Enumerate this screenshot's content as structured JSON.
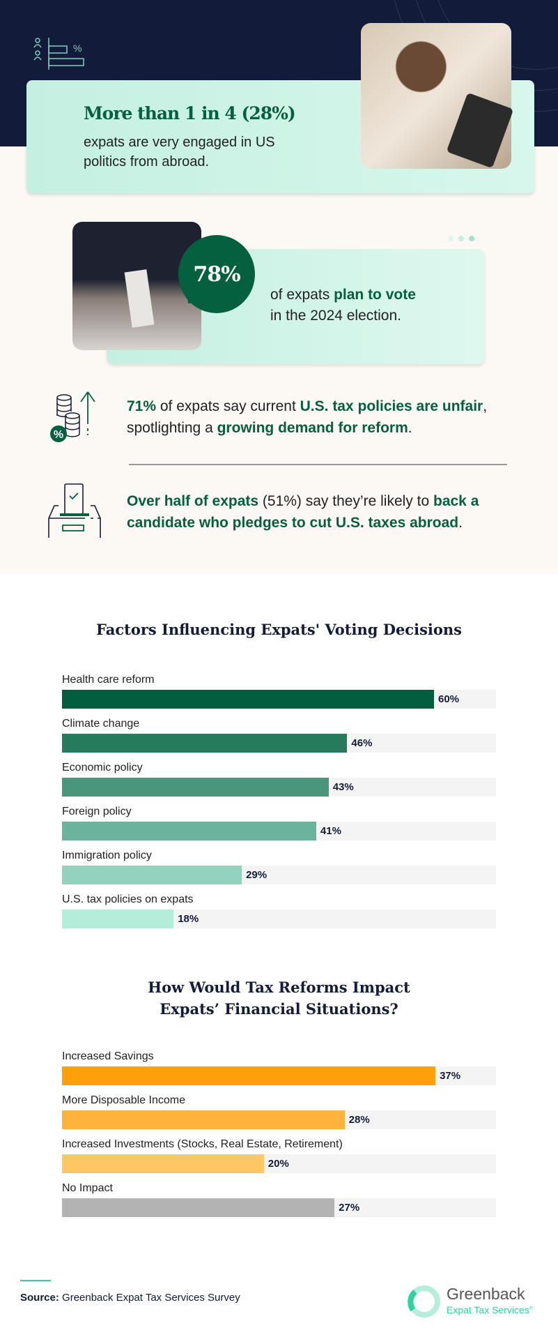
{
  "hero": {
    "headline": "More than 1 in 4 (28%)",
    "body": "expats are very engaged in US politics from abroad.",
    "icon": "people-bar-chart-percent-icon",
    "percent_symbol": "%"
  },
  "vote": {
    "stat": "78%",
    "pre": "of expats ",
    "bold": "plan to vote",
    "post": " in the 2024 election."
  },
  "stat1": {
    "icon": "coins-percent-arrow-icon",
    "p1": "71%",
    "p2": " of expats say current ",
    "p3": "U.S. tax policies are unfair",
    "p4": ", spotlighting a ",
    "p5": "growing demand for reform",
    "p6": "."
  },
  "stat2": {
    "icon": "ballot-box-icon",
    "p1": "Over half of expats",
    "p2": " (51%) say they’re likely to ",
    "p3": "back a candidate who pledges to cut U.S. taxes abroad",
    "p4": "."
  },
  "colors": {
    "navy": "#121b3a",
    "green": "#04603f",
    "mint": "#c4f0e1",
    "beige": "#fcf9f4"
  },
  "chart_data": [
    {
      "type": "bar",
      "orientation": "horizontal",
      "title": "Factors Influencing Expats' Voting Decisions",
      "categories": [
        "Health care reform",
        "Climate change",
        "Economic policy",
        "Foreign policy",
        "Immigration policy",
        "U.S. tax policies on expats"
      ],
      "values": [
        60,
        46,
        43,
        41,
        29,
        18
      ],
      "labels": [
        "60%",
        "46%",
        "43%",
        "41%",
        "29%",
        "18%"
      ],
      "colors": [
        "#035e40",
        "#267b5c",
        "#4a967c",
        "#6cb39d",
        "#93d2bf",
        "#b5eddb"
      ],
      "xlim": [
        0,
        70
      ],
      "unit": "%"
    },
    {
      "type": "bar",
      "orientation": "horizontal",
      "title": "How Would Tax Reforms Impact Expats’ Financial Situations?",
      "categories": [
        "Increased Savings",
        "More Disposable Income",
        "Increased Investments (Stocks, Real Estate, Retirement)",
        "No Impact"
      ],
      "values": [
        37,
        28,
        20,
        27
      ],
      "labels": [
        "37%",
        "28%",
        "20%",
        "27%"
      ],
      "colors": [
        "#ff9f0a",
        "#ffb23c",
        "#ffc764",
        "#b3b3b3"
      ],
      "xlim": [
        0,
        43
      ],
      "unit": "%"
    }
  ],
  "footer": {
    "source_label": "Source:",
    "source": " Greenback Expat Tax Services Survey",
    "logo_name": "Greenback",
    "logo_sub": "Expat Tax Services",
    "logo_mark": "®"
  }
}
